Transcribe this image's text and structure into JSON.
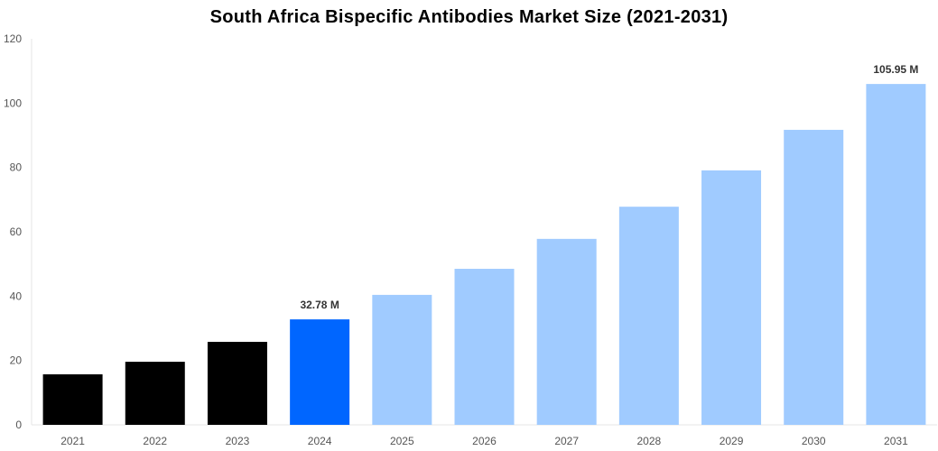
{
  "chart_data": {
    "type": "bar",
    "title": "South Africa Bispecific Antibodies Market Size (2021-2031)",
    "xlabel": "",
    "ylabel": "",
    "categories": [
      "2021",
      "2022",
      "2023",
      "2024",
      "2025",
      "2026",
      "2027",
      "2028",
      "2029",
      "2030",
      "2031"
    ],
    "values": [
      15.7,
      19.6,
      25.8,
      32.78,
      40.4,
      48.5,
      57.8,
      67.8,
      79.1,
      91.7,
      105.95
    ],
    "bar_colors": [
      "#000000",
      "#000000",
      "#000000",
      "#0066ff",
      "#a0cbff",
      "#a0cbff",
      "#a0cbff",
      "#a0cbff",
      "#a0cbff",
      "#a0cbff",
      "#a0cbff"
    ],
    "data_labels": {
      "3": "32.78 M",
      "10": "105.95 M"
    },
    "ylim": [
      0,
      120
    ],
    "yticks": [
      0,
      20,
      40,
      60,
      80,
      100,
      120
    ],
    "grid": false,
    "legend": "none"
  }
}
